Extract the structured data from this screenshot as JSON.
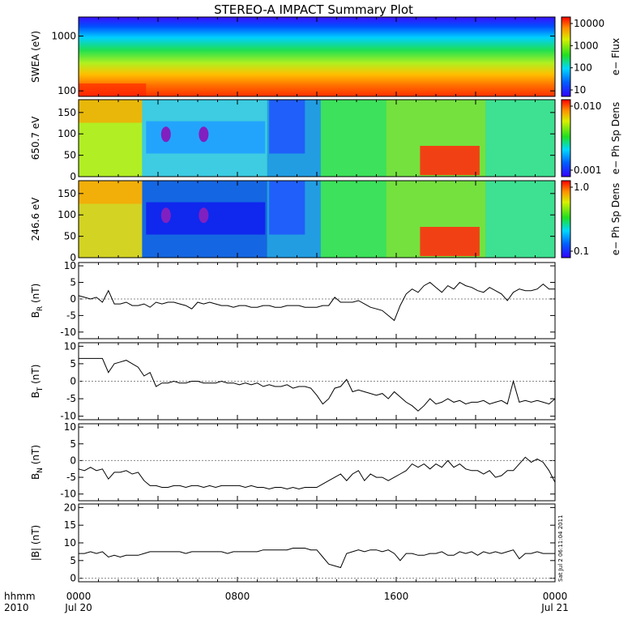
{
  "title": "STEREO-A IMPACT Summary Plot",
  "x_axis": {
    "label_line1": "hhmm",
    "label_line2": "2010",
    "ticks": [
      {
        "t": 0,
        "line1": "0000",
        "line2": "Jul 20"
      },
      {
        "t": 8,
        "line1": "0800",
        "line2": ""
      },
      {
        "t": 16,
        "line1": "1600",
        "line2": ""
      },
      {
        "t": 24,
        "line1": "0000",
        "line2": "Jul 21"
      }
    ]
  },
  "timestamp": "Sat Jul  2 06:11:04 2011",
  "chart_data": [
    {
      "type": "heatmap",
      "ylabel": "SWEA (eV)",
      "ylog": true,
      "yticks": [
        "1000",
        "100"
      ],
      "colorbar_label": "e− Flux",
      "colorbar_ticks": [
        "10000",
        "1000",
        "100",
        "10"
      ],
      "description_of_values": "energy flux spectrogram: high flux (red) at low energy, low (blue) near top"
    },
    {
      "type": "heatmap",
      "ylabel": "650.7 eV",
      "ylim": [
        0,
        180
      ],
      "yticks": [
        "150",
        "100",
        "50",
        "0"
      ],
      "colorbar_label": "e− Ph Sp Dens",
      "colorbar_ticks": [
        "0.010",
        "0.001"
      ],
      "colorbar_log": true
    },
    {
      "type": "heatmap",
      "ylabel": "246.6 eV",
      "ylim": [
        0,
        180
      ],
      "yticks": [
        "150",
        "100",
        "50",
        "0"
      ],
      "colorbar_label": "e− Ph Sp Dens",
      "colorbar_ticks": [
        "1.0",
        "0.1"
      ],
      "colorbar_log": true
    },
    {
      "type": "line",
      "ylabel": "B",
      "ysub": "R",
      "yunit": " (nT)",
      "ylim": [
        -12,
        11
      ],
      "yticks": [
        "10",
        "5",
        "0",
        "-5",
        "-10"
      ],
      "x_hours": [
        0,
        0.3,
        0.6,
        0.9,
        1.2,
        1.5,
        1.8,
        2.1,
        2.4,
        2.7,
        3,
        3.3,
        3.6,
        3.9,
        4.2,
        4.5,
        4.8,
        5.1,
        5.4,
        5.7,
        6,
        6.3,
        6.6,
        6.9,
        7.2,
        7.5,
        7.8,
        8.1,
        8.4,
        8.7,
        9,
        9.3,
        9.6,
        9.9,
        10.2,
        10.5,
        10.8,
        11.1,
        11.4,
        11.7,
        12,
        12.3,
        12.6,
        12.9,
        13.2,
        13.5,
        13.8,
        14.1,
        14.4,
        14.7,
        15,
        15.3,
        15.6,
        15.9,
        16.2,
        16.5,
        16.8,
        17.1,
        17.4,
        17.7,
        18,
        18.3,
        18.6,
        18.9,
        19.2,
        19.5,
        19.8,
        20.1,
        20.4,
        20.7,
        21,
        21.3,
        21.6,
        21.9,
        22.2,
        22.5,
        22.8,
        23.1,
        23.4,
        23.7,
        24
      ],
      "values": [
        1,
        0.5,
        0,
        0.5,
        -1,
        2.5,
        -1.5,
        -1.5,
        -1,
        -2,
        -2,
        -1.5,
        -2.5,
        -1,
        -1.5,
        -1,
        -1,
        -1.5,
        -2,
        -3,
        -1,
        -1.5,
        -1,
        -1.5,
        -2,
        -2,
        -2.5,
        -2,
        -2,
        -2.5,
        -2.5,
        -2,
        -2,
        -2.5,
        -2.5,
        -2,
        -2,
        -2,
        -2.5,
        -2.5,
        -2.5,
        -2,
        -2,
        0.5,
        -1,
        -1,
        -1,
        -0.5,
        -1.5,
        -2.5,
        -3,
        -3.5,
        -5,
        -6.5,
        -2,
        1.5,
        3,
        2,
        4,
        5,
        3.5,
        2,
        4,
        3,
        5,
        4,
        3.5,
        2.5,
        2,
        3.5,
        2.5,
        1.5,
        -0.5,
        2,
        3,
        2.5,
        2.5,
        3,
        4.5,
        3,
        3
      ],
      "color": "#000000"
    },
    {
      "type": "line",
      "ylabel": "B",
      "ysub": "T",
      "yunit": " (nT)",
      "ylim": [
        -11,
        11
      ],
      "yticks": [
        "10",
        "5",
        "0",
        "-5",
        "-10"
      ],
      "x_hours": [
        0,
        0.3,
        0.6,
        0.9,
        1.2,
        1.5,
        1.8,
        2.1,
        2.4,
        2.7,
        3,
        3.3,
        3.6,
        3.9,
        4.2,
        4.5,
        4.8,
        5.1,
        5.4,
        5.7,
        6,
        6.3,
        6.6,
        6.9,
        7.2,
        7.5,
        7.8,
        8.1,
        8.4,
        8.7,
        9,
        9.3,
        9.6,
        9.9,
        10.2,
        10.5,
        10.8,
        11.1,
        11.4,
        11.7,
        12,
        12.3,
        12.6,
        12.9,
        13.2,
        13.5,
        13.8,
        14.1,
        14.4,
        14.7,
        15,
        15.3,
        15.6,
        15.9,
        16.2,
        16.5,
        16.8,
        17.1,
        17.4,
        17.7,
        18,
        18.3,
        18.6,
        18.9,
        19.2,
        19.5,
        19.8,
        20.1,
        20.4,
        20.7,
        21,
        21.3,
        21.6,
        21.9,
        22.2,
        22.5,
        22.8,
        23.1,
        23.4,
        23.7,
        24
      ],
      "values": [
        6.5,
        6.5,
        6.5,
        6.5,
        6.5,
        2.5,
        5,
        5.5,
        6,
        5,
        4,
        1.5,
        2.5,
        -1.5,
        -0.5,
        -0.5,
        0,
        -0.5,
        -0.5,
        0,
        0,
        -0.5,
        -0.5,
        -0.5,
        0,
        -0.5,
        -0.5,
        -1,
        -0.5,
        -1,
        -0.5,
        -1.5,
        -1,
        -1.5,
        -1.5,
        -1,
        -2,
        -1.5,
        -1.5,
        -2,
        -4,
        -6.5,
        -5,
        -2,
        -1.5,
        0.5,
        -3,
        -2.5,
        -3,
        -3.5,
        -4,
        -3.5,
        -5,
        -3,
        -4.5,
        -6,
        -7,
        -8.5,
        -7,
        -5,
        -6.5,
        -6,
        -5,
        -6,
        -5.5,
        -6.5,
        -6,
        -6,
        -5.5,
        -6.5,
        -6,
        -5.5,
        -6.5,
        0,
        -6,
        -5.5,
        -6,
        -5.5,
        -6,
        -6.5,
        -5
      ],
      "color": "#000000"
    },
    {
      "type": "line",
      "ylabel": "B",
      "ysub": "N",
      "yunit": " (nT)",
      "ylim": [
        -12,
        11
      ],
      "yticks": [
        "10",
        "5",
        "0",
        "-5",
        "-10"
      ],
      "x_hours": [
        0,
        0.3,
        0.6,
        0.9,
        1.2,
        1.5,
        1.8,
        2.1,
        2.4,
        2.7,
        3,
        3.3,
        3.6,
        3.9,
        4.2,
        4.5,
        4.8,
        5.1,
        5.4,
        5.7,
        6,
        6.3,
        6.6,
        6.9,
        7.2,
        7.5,
        7.8,
        8.1,
        8.4,
        8.7,
        9,
        9.3,
        9.6,
        9.9,
        10.2,
        10.5,
        10.8,
        11.1,
        11.4,
        11.7,
        12,
        12.3,
        12.6,
        12.9,
        13.2,
        13.5,
        13.8,
        14.1,
        14.4,
        14.7,
        15,
        15.3,
        15.6,
        15.9,
        16.2,
        16.5,
        16.8,
        17.1,
        17.4,
        17.7,
        18,
        18.3,
        18.6,
        18.9,
        19.2,
        19.5,
        19.8,
        20.1,
        20.4,
        20.7,
        21,
        21.3,
        21.6,
        21.9,
        22.2,
        22.5,
        22.8,
        23.1,
        23.4,
        23.7,
        24
      ],
      "values": [
        -2.5,
        -3,
        -2,
        -3,
        -2.5,
        -5.5,
        -3.5,
        -3.5,
        -3,
        -4,
        -3.5,
        -6,
        -7.5,
        -7.5,
        -8,
        -8,
        -7.5,
        -7.5,
        -8,
        -7.5,
        -7.5,
        -8,
        -7.5,
        -8,
        -7.5,
        -7.5,
        -7.5,
        -7.5,
        -8,
        -7.5,
        -8,
        -8,
        -8.5,
        -8,
        -8,
        -8.5,
        -8,
        -8.5,
        -8,
        -8,
        -8,
        -7,
        -6,
        -5,
        -4,
        -6,
        -4,
        -3,
        -6,
        -4,
        -5,
        -5,
        -6,
        -5,
        -4,
        -3,
        -1,
        -2,
        -1,
        -2.5,
        -1,
        -2,
        0,
        -2,
        -1,
        -2.5,
        -3,
        -3,
        -4,
        -3,
        -5,
        -4.5,
        -3,
        -3,
        -1,
        1,
        -0.5,
        0.5,
        -0.5,
        -3,
        -6.5
      ],
      "color": "#000000"
    },
    {
      "type": "line",
      "ylabel": "|B| (nT)",
      "ylim": [
        -1,
        21
      ],
      "yticks": [
        "20",
        "15",
        "10",
        "5",
        "0"
      ],
      "x_hours": [
        0,
        0.3,
        0.6,
        0.9,
        1.2,
        1.5,
        1.8,
        2.1,
        2.4,
        2.7,
        3,
        3.3,
        3.6,
        3.9,
        4.2,
        4.5,
        4.8,
        5.1,
        5.4,
        5.7,
        6,
        6.3,
        6.6,
        6.9,
        7.2,
        7.5,
        7.8,
        8.1,
        8.4,
        8.7,
        9,
        9.3,
        9.6,
        9.9,
        10.2,
        10.5,
        10.8,
        11.1,
        11.4,
        11.7,
        12,
        12.3,
        12.6,
        12.9,
        13.2,
        13.5,
        13.8,
        14.1,
        14.4,
        14.7,
        15,
        15.3,
        15.6,
        15.9,
        16.2,
        16.5,
        16.8,
        17.1,
        17.4,
        17.7,
        18,
        18.3,
        18.6,
        18.9,
        19.2,
        19.5,
        19.8,
        20.1,
        20.4,
        20.7,
        21,
        21.3,
        21.6,
        21.9,
        22.2,
        22.5,
        22.8,
        23.1,
        23.4,
        23.7,
        24
      ],
      "values": [
        7,
        7,
        7.5,
        7,
        7.5,
        6,
        6.5,
        6,
        6.5,
        6.5,
        6.5,
        7,
        7.5,
        7.5,
        7.5,
        7.5,
        7.5,
        7.5,
        7,
        7.5,
        7.5,
        7.5,
        7.5,
        7.5,
        7.5,
        7,
        7.5,
        7.5,
        7.5,
        7.5,
        7.5,
        8,
        8,
        8,
        8,
        8,
        8.5,
        8.5,
        8.5,
        8,
        8,
        6,
        4,
        3.5,
        3,
        7,
        7.5,
        8,
        7.5,
        8,
        8,
        7.5,
        8,
        7,
        5,
        7,
        7,
        6.5,
        6.5,
        7,
        7,
        7.5,
        6.5,
        6.5,
        7.5,
        7,
        7.5,
        6.5,
        7.5,
        7,
        7.5,
        7,
        7.5,
        8,
        5.5,
        7,
        7,
        7.5,
        7,
        7,
        7
      ],
      "color": "#000000"
    }
  ]
}
